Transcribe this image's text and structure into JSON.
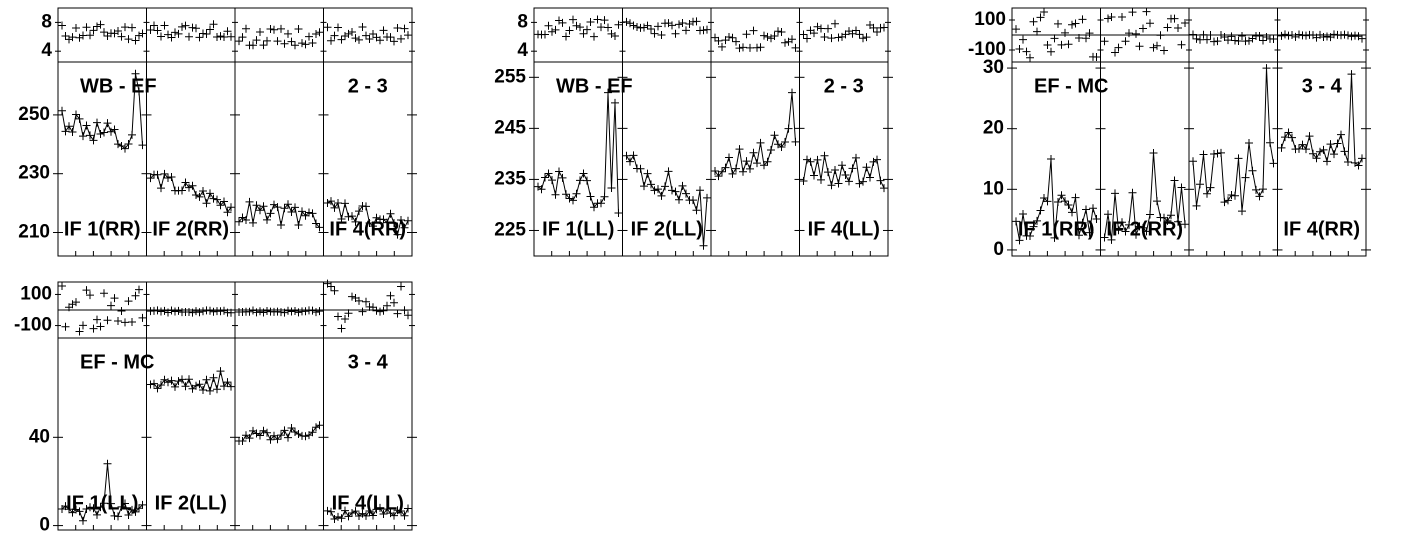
{
  "chart_data": [
    {
      "type": "scatter",
      "baseline": "WB - EF",
      "lag_baseline": "2 - 3",
      "pol": "RR",
      "phase_ylim": [
        2.5,
        10
      ],
      "phase_ticks": [
        {
          "v": 8,
          "label": "8"
        },
        {
          "v": 4,
          "label": "4"
        }
      ],
      "phase_zero": null,
      "amp_ylim": [
        202,
        268
      ],
      "amp_ticks": [
        {
          "v": 250,
          "label": "250"
        },
        {
          "v": 230,
          "label": "230"
        },
        {
          "v": 210,
          "label": "210"
        }
      ],
      "panels": [
        {
          "label": "IF 1(RR)",
          "phase": {
            "center": 6.6,
            "spread": 1.2,
            "seed": 11
          },
          "amp": {
            "start": 249,
            "end": 237,
            "spread": 5,
            "seed": 12,
            "spikes": [
              [
                0.93,
                264
              ],
              [
                0.97,
                258
              ]
            ]
          }
        },
        {
          "label": "IF 2(RR)",
          "phase": {
            "center": 6.8,
            "spread": 1.0,
            "seed": 13
          },
          "amp": {
            "start": 229,
            "end": 219,
            "spread": 3,
            "seed": 14,
            "spikes": []
          }
        },
        {
          "label": "",
          "phase": {
            "center": 6.0,
            "spread": 1.2,
            "seed": 15
          },
          "amp": {
            "start": 217,
            "end": 215,
            "spread": 4,
            "seed": 16,
            "spikes": []
          }
        },
        {
          "label": "IF 4(RR)",
          "phase": {
            "center": 6.4,
            "spread": 1.1,
            "seed": 17
          },
          "amp": {
            "start": 218,
            "end": 212,
            "spread": 4,
            "seed": 18,
            "spikes": []
          }
        }
      ]
    },
    {
      "type": "scatter",
      "baseline": "WB - EF",
      "lag_baseline": "2 - 3",
      "pol": "LL",
      "phase_ylim": [
        2.5,
        10
      ],
      "phase_ticks": [
        {
          "v": 8,
          "label": "8"
        },
        {
          "v": 4,
          "label": "4"
        }
      ],
      "phase_zero": null,
      "amp_ylim": [
        220,
        258
      ],
      "amp_ticks": [
        {
          "v": 255,
          "label": "255"
        },
        {
          "v": 245,
          "label": "245"
        },
        {
          "v": 235,
          "label": "235"
        },
        {
          "v": 225,
          "label": "225"
        }
      ],
      "panels": [
        {
          "label": "IF 1(LL)",
          "phase": {
            "center": 7.0,
            "spread": 1.4,
            "seed": 21
          },
          "amp": {
            "start": 236,
            "end": 231,
            "spread": 3,
            "seed": 22,
            "spikes": [
              [
                0.88,
                252
              ],
              [
                0.95,
                250
              ]
            ]
          }
        },
        {
          "label": "IF 2(LL)",
          "phase": {
            "center": 7.2,
            "spread": 1.0,
            "seed": 23
          },
          "amp": {
            "start": 238,
            "end": 230,
            "spread": 3,
            "seed": 24,
            "spikes": [
              [
                0.95,
                222
              ]
            ]
          }
        },
        {
          "label": "",
          "phase": {
            "center": 5.6,
            "spread": 1.3,
            "seed": 25
          },
          "amp": {
            "start": 237,
            "end": 243,
            "spread": 3,
            "seed": 26,
            "spikes": [
              [
                0.97,
                252
              ]
            ]
          }
        },
        {
          "label": "IF 4(LL)",
          "phase": {
            "center": 6.8,
            "spread": 1.1,
            "seed": 27
          },
          "amp": {
            "start": 237,
            "end": 236,
            "spread": 3,
            "seed": 28,
            "spikes": []
          }
        }
      ]
    },
    {
      "type": "scatter",
      "baseline": "EF - MC",
      "lag_baseline": "3 - 4",
      "pol": "RR",
      "phase_ylim": [
        -180,
        180
      ],
      "phase_ticks": [
        {
          "v": 100,
          "label": "100"
        },
        {
          "v": -100,
          "label": "-100"
        }
      ],
      "phase_zero": 0,
      "amp_ylim": [
        -1,
        31
      ],
      "amp_ticks": [
        {
          "v": 30,
          "label": "30"
        },
        {
          "v": 20,
          "label": "20"
        },
        {
          "v": 10,
          "label": "10"
        },
        {
          "v": 0,
          "label": "0"
        }
      ],
      "panels": [
        {
          "label": "IF 1(RR)",
          "phase": {
            "center": 0,
            "spread": 160,
            "seed": 31
          },
          "amp": {
            "start": 5,
            "end": 6,
            "spread": 3.5,
            "seed": 32,
            "spikes": [
              [
                0.45,
                15
              ]
            ]
          }
        },
        {
          "label": "IF 2(RR)",
          "phase": {
            "center": 20,
            "spread": 150,
            "seed": 33
          },
          "amp": {
            "start": 5,
            "end": 8,
            "spread": 4,
            "seed": 34,
            "spikes": [
              [
                0.62,
                16
              ]
            ]
          }
        },
        {
          "label": "",
          "phase": {
            "center": -20,
            "spread": 25,
            "seed": 35
          },
          "amp": {
            "start": 11,
            "end": 12,
            "spread": 6,
            "seed": 36,
            "spikes": [
              [
                0.92,
                30
              ]
            ]
          }
        },
        {
          "label": "IF 4(RR)",
          "phase": {
            "center": -10,
            "spread": 15,
            "seed": 37
          },
          "amp": {
            "start": 17,
            "end": 16,
            "spread": 3,
            "seed": 38,
            "spikes": [
              [
                0.86,
                29
              ]
            ]
          }
        }
      ]
    },
    {
      "type": "scatter",
      "baseline": "EF - MC",
      "lag_baseline": "3 - 4",
      "pol": "LL",
      "phase_ylim": [
        -180,
        180
      ],
      "phase_ticks": [
        {
          "v": 100,
          "label": "100"
        },
        {
          "v": -100,
          "label": "-100"
        }
      ],
      "phase_zero": 0,
      "amp_ylim": [
        -2,
        85
      ],
      "amp_ticks": [
        {
          "v": 40,
          "label": "40"
        },
        {
          "v": 0,
          "label": "0"
        }
      ],
      "panels": [
        {
          "label": "IF 1(LL)",
          "phase": {
            "center": 0,
            "spread": 160,
            "seed": 41
          },
          "amp": {
            "start": 5,
            "end": 8,
            "spread": 4,
            "seed": 42,
            "spikes": [
              [
                0.55,
                28
              ]
            ]
          }
        },
        {
          "label": "IF 2(LL)",
          "phase": {
            "center": -10,
            "spread": 8,
            "seed": 43
          },
          "amp": {
            "start": 64,
            "end": 64,
            "spread": 3,
            "seed": 44,
            "spikes": [
              [
                0.85,
                70
              ]
            ]
          }
        },
        {
          "label": "",
          "phase": {
            "center": -10,
            "spread": 8,
            "seed": 45
          },
          "amp": {
            "start": 40,
            "end": 43,
            "spread": 2.5,
            "seed": 46,
            "spikes": []
          }
        },
        {
          "label": "IF 4(LL)",
          "phase": {
            "center": 20,
            "spread": 150,
            "seed": 47
          },
          "amp": {
            "start": 5,
            "end": 7,
            "spread": 2.5,
            "seed": 48,
            "spikes": []
          }
        }
      ]
    }
  ]
}
